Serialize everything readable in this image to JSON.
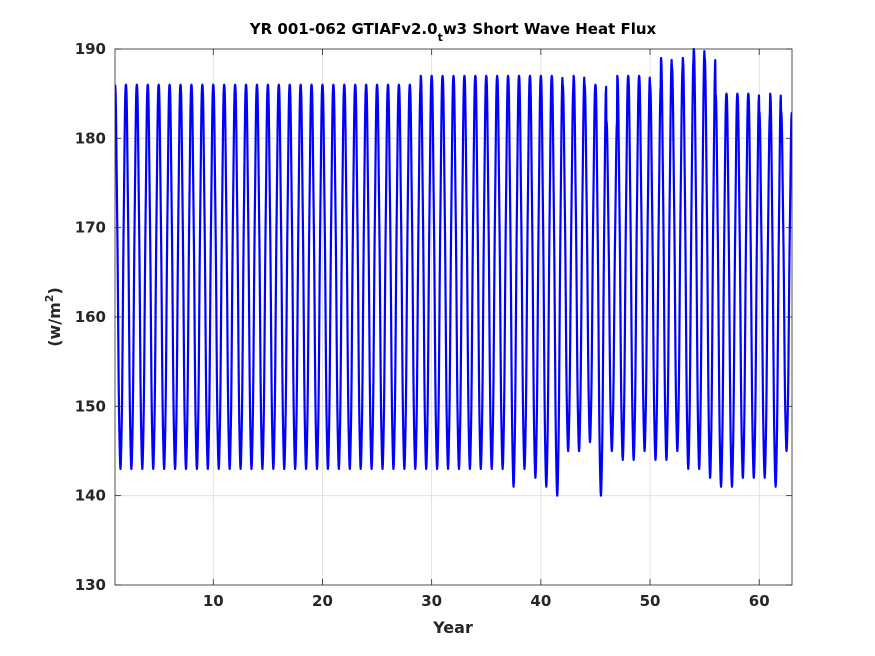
{
  "chart_data": {
    "type": "line",
    "title_parts": {
      "main": "YR 001-062 GTIAFv2.0",
      "subscript": "t",
      "rest": "w3 Short Wave Heat Flux"
    },
    "xlabel": "Year",
    "ylabel_parts": {
      "main": "(w/m",
      "superscript": "2",
      "rest": ")"
    },
    "xlim": [
      1,
      63
    ],
    "ylim": [
      130,
      190
    ],
    "xticks": [
      10,
      20,
      30,
      40,
      50,
      60
    ],
    "yticks": [
      130,
      140,
      150,
      160,
      170,
      180,
      190
    ],
    "grid": true,
    "color": "#0000ff",
    "series": [
      {
        "cycle_period_years": 1,
        "yearly_max": [
          186,
          186,
          186,
          186,
          186,
          186,
          186,
          186,
          186,
          186,
          186,
          186,
          186,
          186,
          186,
          186,
          186,
          186,
          186,
          186,
          186,
          186,
          186,
          186,
          186,
          186,
          186,
          186,
          187,
          187,
          187,
          187,
          187,
          187,
          187,
          187,
          187,
          187,
          187,
          187,
          187,
          186,
          187,
          186,
          186,
          182,
          187,
          187,
          187,
          186,
          189,
          188,
          189,
          190,
          189,
          185,
          185,
          185,
          185,
          183,
          185,
          183,
          179
        ],
        "yearly_min": [
          143,
          143,
          143,
          143,
          143,
          143,
          143,
          143,
          143,
          143,
          143,
          143,
          143,
          143,
          143,
          143,
          143,
          143,
          143,
          143,
          143,
          143,
          143,
          143,
          143,
          143,
          143,
          143,
          143,
          143,
          143,
          143,
          143,
          143,
          143,
          143,
          141,
          143,
          142,
          141,
          140,
          145,
          145,
          146,
          140,
          145,
          144,
          144,
          145,
          144,
          144,
          145,
          143,
          143,
          142,
          141,
          141,
          142,
          142,
          142,
          141,
          145,
          143
        ]
      }
    ]
  }
}
